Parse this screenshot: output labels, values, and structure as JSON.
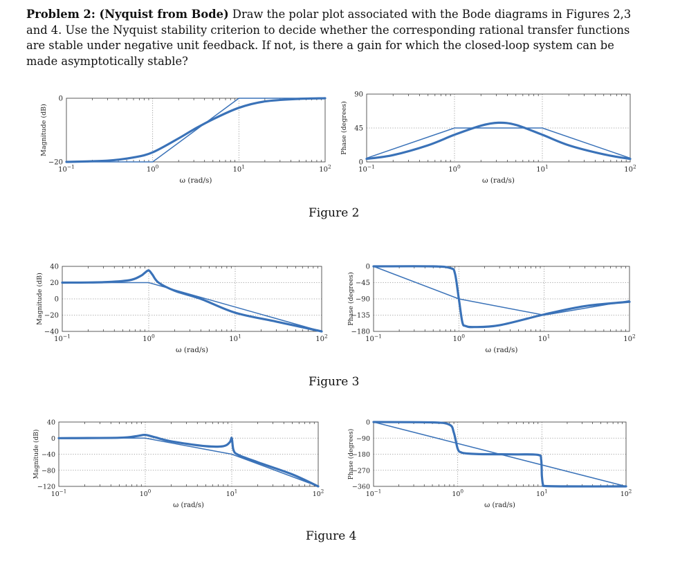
{
  "problem": {
    "heading": "Problem 2: (Nyquist from Bode)",
    "text": " Draw the polar plot associated with the Bode diagrams in Figures 2,3 and 4. Use the Nyquist stability criterion to decide whether the corresponding rational transfer functions are stable under negative unit feedback. If not, is there a gain for which the closed-loop system can be made asymptotically stable?"
  },
  "figures": [
    {
      "caption": "Figure 2"
    },
    {
      "caption": "Figure 3"
    },
    {
      "caption": "Figure 4"
    }
  ],
  "chart_data": [
    {
      "type": "line",
      "figure": "Figure 2",
      "panel": "magnitude",
      "xlabel": "ω (rad/s)",
      "ylabel": "Magnitude (dB)",
      "xscale": "log",
      "xlim": [
        0.1,
        100
      ],
      "ylim": [
        -20,
        0
      ],
      "xticks": [
        "10^-1",
        "10^0",
        "10^1",
        "10^2"
      ],
      "yticks": [
        "-20",
        "0"
      ],
      "series": [
        {
          "style": "thin",
          "x": [
            0.1,
            1,
            10,
            100
          ],
          "y": [
            -20,
            -20,
            0,
            0
          ]
        },
        {
          "style": "thick",
          "x": [
            0.1,
            0.3,
            0.6,
            1,
            2,
            3,
            5,
            10,
            20,
            50,
            100
          ],
          "y": [
            -20,
            -19.6,
            -18.6,
            -17,
            -12.6,
            -9.8,
            -6.6,
            -3,
            -1,
            -0.2,
            0
          ]
        }
      ]
    },
    {
      "type": "line",
      "figure": "Figure 2",
      "panel": "phase",
      "xlabel": "ω (rad/s)",
      "ylabel": "Phase (degrees)",
      "xscale": "log",
      "xlim": [
        0.1,
        100
      ],
      "ylim": [
        0,
        90
      ],
      "xticks": [
        "10^-1",
        "10^0",
        "10^1",
        "10^2"
      ],
      "yticks": [
        "0",
        "45",
        "90"
      ],
      "series": [
        {
          "style": "thin",
          "x": [
            0.1,
            1,
            10,
            100
          ],
          "y": [
            5,
            45,
            45,
            5
          ]
        },
        {
          "style": "thick",
          "x": [
            0.1,
            0.2,
            0.5,
            1,
            2,
            3.16,
            5,
            10,
            20,
            50,
            100
          ],
          "y": [
            4,
            9,
            22,
            36,
            48,
            52,
            49,
            36,
            22,
            10,
            4
          ]
        }
      ]
    },
    {
      "type": "line",
      "figure": "Figure 3",
      "panel": "magnitude",
      "xlabel": "ω (rad/s)",
      "ylabel": "Magnitude (dB)",
      "xscale": "log",
      "xlim": [
        0.1,
        100
      ],
      "ylim": [
        -40,
        40
      ],
      "xticks": [
        "10^-1",
        "10^0",
        "10^1",
        "10^2"
      ],
      "yticks": [
        "-40",
        "-20",
        "0",
        "20",
        "40"
      ],
      "series": [
        {
          "style": "thin",
          "x": [
            0.1,
            1,
            100
          ],
          "y": [
            20,
            20,
            -40
          ]
        },
        {
          "style": "thick",
          "x": [
            0.1,
            0.3,
            0.6,
            0.8,
            0.9,
            1,
            1.1,
            1.3,
            2,
            4,
            10,
            30,
            100
          ],
          "y": [
            20,
            20.5,
            23,
            28,
            32,
            35,
            30,
            20,
            10,
            0,
            -17,
            -28,
            -40
          ]
        }
      ]
    },
    {
      "type": "line",
      "figure": "Figure 3",
      "panel": "phase",
      "xlabel": "ω (rad/s)",
      "ylabel": "Phase (degrees)",
      "xscale": "log",
      "xlim": [
        0.1,
        100
      ],
      "ylim": [
        -180,
        0
      ],
      "xticks": [
        "10^-1",
        "10^0",
        "10^1",
        "10^2"
      ],
      "yticks": [
        "-180",
        "-135",
        "-90",
        "-45",
        "0"
      ],
      "series": [
        {
          "style": "thin",
          "x": [
            0.1,
            1,
            10,
            100
          ],
          "y": [
            0,
            -90,
            -135,
            -95
          ]
        },
        {
          "style": "thick",
          "x": [
            0.1,
            0.5,
            0.8,
            0.9,
            1,
            1.1,
            1.2,
            1.5,
            3,
            10,
            30,
            100
          ],
          "y": [
            0,
            0,
            -5,
            -20,
            -90,
            -155,
            -165,
            -168,
            -163,
            -133,
            -110,
            -98
          ]
        }
      ]
    },
    {
      "type": "line",
      "figure": "Figure 4",
      "panel": "magnitude",
      "xlabel": "ω (rad/s)",
      "ylabel": "Magnitude (dB)",
      "xscale": "log",
      "xlim": [
        0.1,
        100
      ],
      "ylim": [
        -120,
        40
      ],
      "xticks": [
        "10^-1",
        "10^0",
        "10^1",
        "10^2"
      ],
      "yticks": [
        "-120",
        "-80",
        "-40",
        "0",
        "40"
      ],
      "series": [
        {
          "style": "thin",
          "x": [
            0.1,
            1,
            10,
            100
          ],
          "y": [
            0,
            0,
            -40,
            -120
          ]
        },
        {
          "style": "thick",
          "x": [
            0.1,
            0.5,
            0.8,
            1,
            1.3,
            2,
            5,
            8,
            9.5,
            10,
            10.5,
            12,
            20,
            50,
            100
          ],
          "y": [
            0,
            1,
            5,
            8,
            2,
            -8,
            -20,
            -20,
            -10,
            0,
            -30,
            -42,
            -60,
            -90,
            -120
          ]
        }
      ]
    },
    {
      "type": "line",
      "figure": "Figure 4",
      "panel": "phase",
      "xlabel": "ω (rad/s)",
      "ylabel": "Phase (degrees)",
      "xscale": "log",
      "xlim": [
        0.1,
        100
      ],
      "ylim": [
        -360,
        0
      ],
      "xticks": [
        "10^-1",
        "10^0",
        "10^1",
        "10^2"
      ],
      "yticks": [
        "-360",
        "-270",
        "-180",
        "-90",
        "0"
      ],
      "series": [
        {
          "style": "thin",
          "x": [
            0.1,
            100
          ],
          "y": [
            0,
            -360
          ]
        },
        {
          "style": "thick",
          "x": [
            0.1,
            0.5,
            0.8,
            0.9,
            1,
            1.1,
            1.3,
            2,
            5,
            9,
            9.8,
            10,
            10.3,
            11,
            20,
            100
          ],
          "y": [
            0,
            -2,
            -15,
            -60,
            -150,
            -170,
            -176,
            -180,
            -181,
            -184,
            -210,
            -300,
            -350,
            -358,
            -360,
            -360
          ]
        }
      ]
    }
  ]
}
